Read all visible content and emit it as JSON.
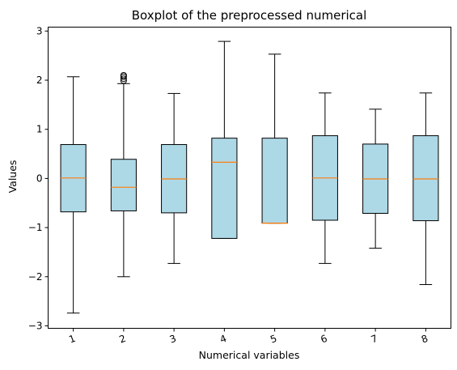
{
  "chart_data": {
    "type": "boxplot",
    "title": "Boxplot of the preprocessed numerical",
    "xlabel": "Numerical variables",
    "ylabel": "Values",
    "ylim": [
      -3.05,
      3.08
    ],
    "yticks": [
      -3,
      -2,
      -1,
      0,
      1,
      2,
      3
    ],
    "ytick_labels": [
      "−3",
      "−2",
      "−1",
      "0",
      "1",
      "2",
      "3"
    ],
    "grid": false,
    "box_color": "#add8e6",
    "median_color": "#ff7f0e",
    "categories": [
      "1",
      "2",
      "3",
      "4",
      "5",
      "6",
      "7",
      "8"
    ],
    "boxes": [
      {
        "label": "1",
        "whisker_low": -2.74,
        "q1": -0.68,
        "median": 0.01,
        "q3": 0.69,
        "whisker_high": 2.07,
        "outliers": []
      },
      {
        "label": "2",
        "whisker_low": -2.0,
        "q1": -0.66,
        "median": -0.18,
        "q3": 0.39,
        "whisker_high": 1.93,
        "outliers": [
          1.99,
          2.03,
          2.07,
          2.1
        ]
      },
      {
        "label": "3",
        "whisker_low": -1.73,
        "q1": -0.7,
        "median": -0.01,
        "q3": 0.69,
        "whisker_high": 1.73,
        "outliers": []
      },
      {
        "label": "4",
        "whisker_low": -1.22,
        "q1": -1.22,
        "median": 0.33,
        "q3": 0.82,
        "whisker_high": 2.79,
        "outliers": []
      },
      {
        "label": "5",
        "whisker_low": -0.91,
        "q1": -0.91,
        "median": -0.91,
        "q3": 0.82,
        "whisker_high": 2.53,
        "outliers": []
      },
      {
        "label": "6",
        "whisker_low": -1.73,
        "q1": -0.85,
        "median": 0.01,
        "q3": 0.87,
        "whisker_high": 1.74,
        "outliers": []
      },
      {
        "label": "7",
        "whisker_low": -1.42,
        "q1": -0.71,
        "median": -0.01,
        "q3": 0.7,
        "whisker_high": 1.41,
        "outliers": []
      },
      {
        "label": "8",
        "whisker_low": -2.16,
        "q1": -0.86,
        "median": -0.01,
        "q3": 0.87,
        "whisker_high": 1.74,
        "outliers": []
      }
    ]
  }
}
